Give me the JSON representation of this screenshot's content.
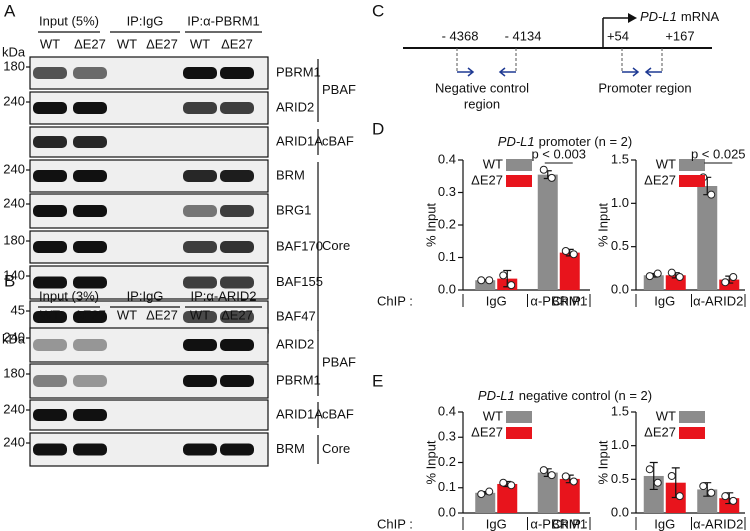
{
  "panel_A": {
    "letter": "A",
    "kda_label": "kDa",
    "groups": [
      "Input (5%)",
      "IP:IgG",
      "IP:α-PBRM1"
    ],
    "lanes": [
      "WT",
      "ΔE27",
      "WT",
      "ΔE27",
      "WT",
      "ΔE27"
    ],
    "blots": [
      {
        "marker": "180",
        "label": "PBRM1"
      },
      {
        "marker": "240",
        "label": "ARID2"
      },
      {
        "label": "ARID1A"
      },
      {
        "marker": "240",
        "label": "BRM"
      },
      {
        "marker": "240",
        "label": "BRG1"
      },
      {
        "marker": "180",
        "label": "BAF170"
      },
      {
        "marker": "140",
        "label": "BAF155"
      },
      {
        "marker": "45",
        "label": "BAF47"
      }
    ],
    "complexes": [
      "PBAF",
      "cBAF",
      "Core"
    ]
  },
  "panel_B": {
    "letter": "B",
    "kda_label": "kDa",
    "groups": [
      "Input (3%)",
      "IP:IgG",
      "IP:α-ARID2"
    ],
    "lanes": [
      "WT",
      "ΔE27",
      "WT",
      "ΔE27",
      "WT",
      "ΔE27"
    ],
    "blots": [
      {
        "marker": "240",
        "label": "ARID2"
      },
      {
        "marker": "180",
        "label": "PBRM1"
      },
      {
        "marker": "240",
        "label": "ARID1A"
      },
      {
        "marker": "240",
        "label": "BRM"
      }
    ],
    "complexes": [
      "PBAF",
      "cBAF",
      "Core"
    ]
  },
  "panel_C": {
    "letter": "C",
    "gene": "PD-L1",
    "transcript": "mRNA",
    "positions": [
      "- 4368",
      "- 4134",
      "+54",
      "+167"
    ],
    "regions": [
      {
        "lines": [
          "Negative control",
          "region"
        ]
      },
      {
        "lines": [
          "Promoter region"
        ]
      }
    ]
  },
  "panel_D": {
    "letter": "D",
    "title_gene": "PD-L1",
    "title_rest": "promoter (n = 2)"
  },
  "panel_E": {
    "letter": "E",
    "title_gene": "PD-L1",
    "title_rest": "negative control (n = 2)"
  },
  "chart_data": [
    {
      "type": "bar",
      "y_label": "% Input",
      "x_label": "ChIP :",
      "categories": [
        "IgG",
        "α-PBRM1"
      ],
      "legend": "upper left",
      "annotation": "p < 0.003",
      "ylim": [
        0,
        0.4
      ],
      "yticks": [
        {
          "value": 0,
          "label": "0.0"
        },
        0.1,
        0.2,
        0.3,
        0.4
      ],
      "series": [
        {
          "name": "WT",
          "color": "#8c8c8c",
          "values": [
            0.03,
            0.355
          ],
          "errors": [
            0.002,
            0.012
          ],
          "points": [
            [
              0.03,
              0.03
            ],
            [
              0.37,
              0.345
            ]
          ]
        },
        {
          "name": "ΔE27",
          "color": "#e8141c",
          "values": [
            0.035,
            0.115
          ],
          "errors": [
            0.025,
            0.01
          ],
          "points": [
            [
              0.045,
              0.015
            ],
            [
              0.12,
              0.11
            ]
          ]
        }
      ]
    },
    {
      "type": "bar",
      "y_label": "% Input",
      "x_label": "ChIP :",
      "categories": [
        "IgG",
        "α-ARID2"
      ],
      "legend": "upper left",
      "annotation": "p < 0.025",
      "ylim": [
        0,
        1.5
      ],
      "yticks": [
        {
          "value": 0,
          "label": "0.0"
        },
        0.5,
        {
          "value": 1,
          "label": "1.0"
        },
        1.5
      ],
      "series": [
        {
          "name": "WT",
          "color": "#8c8c8c",
          "values": [
            0.17,
            1.2
          ],
          "errors": [
            0.02,
            0.1
          ],
          "points": [
            [
              0.16,
              0.19
            ],
            [
              1.3,
              1.1
            ]
          ]
        },
        {
          "name": "ΔE27",
          "color": "#e8141c",
          "values": [
            0.17,
            0.12
          ],
          "errors": [
            0.03,
            0.04
          ],
          "points": [
            [
              0.2,
              0.15
            ],
            [
              0.09,
              0.15
            ]
          ]
        }
      ]
    },
    {
      "type": "bar",
      "y_label": "% Input",
      "x_label": "ChIP :",
      "categories": [
        "IgG",
        "α-PBRM1"
      ],
      "legend": "upper left",
      "ylim": [
        0,
        0.4
      ],
      "yticks": [
        {
          "value": 0,
          "label": "0.0"
        },
        0.1,
        0.2,
        0.3,
        0.4
      ],
      "series": [
        {
          "name": "WT",
          "color": "#8c8c8c",
          "values": [
            0.08,
            0.16
          ],
          "errors": [
            0.005,
            0.015
          ],
          "points": [
            [
              0.075,
              0.085
            ],
            [
              0.17,
              0.15
            ]
          ]
        },
        {
          "name": "ΔE27",
          "color": "#e8141c",
          "values": [
            0.115,
            0.135
          ],
          "errors": [
            0.01,
            0.015
          ],
          "points": [
            [
              0.12,
              0.11
            ],
            [
              0.145,
              0.125
            ]
          ]
        }
      ]
    },
    {
      "type": "bar",
      "y_label": "% Input",
      "x_label": "ChIP :",
      "categories": [
        "IgG",
        "α-ARID2"
      ],
      "legend": "upper left",
      "ylim": [
        0,
        1.5
      ],
      "yticks": [
        {
          "value": 0,
          "label": "0.0"
        },
        0.5,
        {
          "value": 1,
          "label": "1.0"
        },
        1.5
      ],
      "series": [
        {
          "name": "WT",
          "color": "#8c8c8c",
          "values": [
            0.55,
            0.35
          ],
          "errors": [
            0.2,
            0.1
          ],
          "points": [
            [
              0.65,
              0.45
            ],
            [
              0.4,
              0.3
            ]
          ]
        },
        {
          "name": "ΔE27",
          "color": "#e8141c",
          "values": [
            0.45,
            0.22
          ],
          "errors": [
            0.22,
            0.08
          ],
          "points": [
            [
              0.55,
              0.25
            ],
            [
              0.25,
              0.18
            ]
          ]
        }
      ]
    }
  ]
}
